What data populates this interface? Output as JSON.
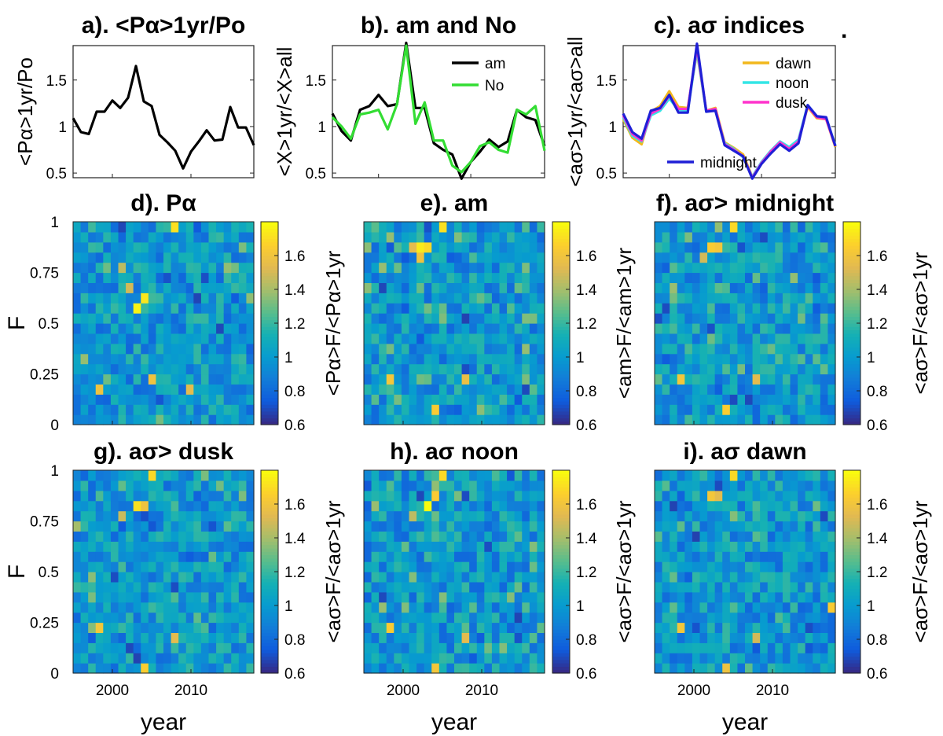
{
  "figure": {
    "trailing_mark": "."
  },
  "chart_data": [
    {
      "id": "a",
      "type": "line",
      "title": "a). <Pα>1yr/Po",
      "ylabel": "<Pα>1yr/Po",
      "xlim": [
        1995,
        2018
      ],
      "ylim": [
        0.45,
        1.87
      ],
      "yticks": [
        "0.5",
        "1",
        "1.5"
      ],
      "ytick_values": [
        0.5,
        1,
        1.5
      ],
      "x": [
        1995,
        1996,
        1997,
        1998,
        1999,
        2000,
        2001,
        2002,
        2003,
        2004,
        2005,
        2006,
        2007,
        2008,
        2009,
        2010,
        2011,
        2012,
        2013,
        2014,
        2015,
        2016,
        2017,
        2018
      ],
      "series": [
        {
          "name": "Pα",
          "color": "#000000",
          "values": [
            1.09,
            0.94,
            0.92,
            1.16,
            1.16,
            1.28,
            1.2,
            1.31,
            1.65,
            1.27,
            1.22,
            0.91,
            0.83,
            0.74,
            0.55,
            0.73,
            0.84,
            0.96,
            0.85,
            0.86,
            1.21,
            0.99,
            0.99,
            0.8
          ]
        }
      ]
    },
    {
      "id": "b",
      "type": "line",
      "title": "b). am and No",
      "ylabel": "<X>1yr/<X>all",
      "xlim": [
        1995,
        2018
      ],
      "ylim": [
        0.45,
        1.87
      ],
      "yticks": [
        "0.5",
        "1",
        "1.5"
      ],
      "ytick_values": [
        0.5,
        1,
        1.5
      ],
      "x": [
        1995,
        1996,
        1997,
        1998,
        1999,
        2000,
        2001,
        2002,
        2003,
        2004,
        2005,
        2006,
        2007,
        2008,
        2009,
        2010,
        2011,
        2012,
        2013,
        2014,
        2015,
        2016,
        2017,
        2018
      ],
      "legend": {
        "position": "top-right",
        "entries": [
          "am",
          "No"
        ]
      },
      "series": [
        {
          "name": "am",
          "color": "#000000",
          "values": [
            1.14,
            0.95,
            0.85,
            1.18,
            1.22,
            1.34,
            1.22,
            1.24,
            1.9,
            1.2,
            1.2,
            0.82,
            0.75,
            0.7,
            0.44,
            0.62,
            0.73,
            0.86,
            0.78,
            0.84,
            1.18,
            1.1,
            1.07,
            0.79
          ]
        },
        {
          "name": "No",
          "color": "#33dd33",
          "values": [
            1.1,
            1.0,
            0.87,
            1.13,
            1.15,
            1.18,
            0.97,
            1.24,
            1.87,
            1.03,
            1.26,
            0.85,
            0.85,
            0.58,
            0.51,
            0.62,
            0.79,
            0.83,
            0.75,
            0.72,
            1.18,
            1.13,
            1.22,
            0.74
          ]
        }
      ]
    },
    {
      "id": "c",
      "type": "line",
      "title": "c). aσ indices",
      "ylabel": "<aσ>1yr/<aσ>all",
      "xlim": [
        1995,
        2018
      ],
      "ylim": [
        0.45,
        1.87
      ],
      "yticks": [
        "0.5",
        "1",
        "1.5"
      ],
      "ytick_values": [
        0.5,
        1,
        1.5
      ],
      "x": [
        1995,
        1996,
        1997,
        1998,
        1999,
        2000,
        2001,
        2002,
        2003,
        2004,
        2005,
        2006,
        2007,
        2008,
        2009,
        2010,
        2011,
        2012,
        2013,
        2014,
        2015,
        2016,
        2017,
        2018
      ],
      "legend": {
        "position": "top-right",
        "entries": [
          "dawn",
          "noon",
          "dusk",
          "midnight"
        ]
      },
      "series": [
        {
          "name": "dawn",
          "color": "#f2b81c",
          "values": [
            1.08,
            0.88,
            0.81,
            1.16,
            1.22,
            1.38,
            1.21,
            1.2,
            1.8,
            1.17,
            1.2,
            0.83,
            0.77,
            0.7,
            0.46,
            0.6,
            0.72,
            0.82,
            0.75,
            0.85,
            1.21,
            1.09,
            1.08,
            0.78
          ]
        },
        {
          "name": "noon",
          "color": "#33e6e6",
          "values": [
            1.1,
            0.9,
            0.84,
            1.12,
            1.17,
            1.3,
            1.18,
            1.17,
            1.82,
            1.16,
            1.18,
            0.82,
            0.76,
            0.67,
            0.46,
            0.62,
            0.74,
            0.84,
            0.78,
            0.86,
            1.23,
            1.11,
            1.09,
            0.8
          ]
        },
        {
          "name": "dusk",
          "color": "#ff33cc",
          "values": [
            1.12,
            0.92,
            0.85,
            1.14,
            1.19,
            1.33,
            1.19,
            1.19,
            1.85,
            1.17,
            1.19,
            0.81,
            0.75,
            0.68,
            0.45,
            0.61,
            0.73,
            0.83,
            0.76,
            0.84,
            1.22,
            1.1,
            1.08,
            0.79
          ]
        },
        {
          "name": "midnight",
          "color": "#1f1fd6",
          "values": [
            1.14,
            0.94,
            0.87,
            1.17,
            1.2,
            1.34,
            1.15,
            1.15,
            1.89,
            1.16,
            1.17,
            0.8,
            0.74,
            0.68,
            0.44,
            0.6,
            0.71,
            0.81,
            0.74,
            0.82,
            1.23,
            1.11,
            1.1,
            0.79
          ]
        }
      ]
    },
    {
      "id": "d",
      "type": "heatmap",
      "title": "d). Pα",
      "ylabel": "F",
      "cbar_label": "",
      "xlim": [
        1995,
        2018
      ],
      "xticks": [
        "2000",
        "2010"
      ],
      "xtick_values": [
        2000,
        2010
      ],
      "yticks": [
        "0",
        "0.25",
        "0.5",
        "0.75",
        "1"
      ],
      "ytick_values": [
        0,
        0.25,
        0.5,
        0.75,
        1
      ],
      "xlabel": "",
      "clim": [
        0.6,
        1.8
      ],
      "cbar_ticks": [
        "0.6",
        "0.8",
        "1",
        "1.2",
        "1.4",
        "1.6"
      ],
      "cbar_tick_values": [
        0.6,
        0.8,
        1,
        1.2,
        1.4,
        1.6
      ],
      "cols": 24,
      "rows": 20,
      "seed": 11,
      "hot_cells": [
        [
          8,
          11,
          1.78
        ],
        [
          9,
          12,
          1.74
        ],
        [
          13,
          19,
          1.72
        ],
        [
          7,
          13,
          1.5
        ],
        [
          10,
          4,
          1.6
        ],
        [
          3,
          3,
          1.6
        ],
        [
          6,
          15,
          1.45
        ],
        [
          15,
          3,
          1.55
        ]
      ]
    },
    {
      "id": "e",
      "type": "heatmap",
      "title": "e). am",
      "ylabel": "<Pα>F/<Pα>1yr",
      "cbar_label": "",
      "xlim": [
        1995,
        2018
      ],
      "xticks": [
        "2000",
        "2010"
      ],
      "xtick_values": [
        2000,
        2010
      ],
      "yticks": [],
      "ytick_values": [],
      "xlabel": "",
      "clim": [
        0.6,
        1.8
      ],
      "cbar_ticks": [
        "0.6",
        "0.8",
        "1",
        "1.2",
        "1.4",
        "1.6"
      ],
      "cbar_tick_values": [
        0.6,
        0.8,
        1,
        1.2,
        1.4,
        1.6
      ],
      "cols": 24,
      "rows": 20,
      "seed": 23,
      "hot_cells": [
        [
          7,
          17,
          1.75
        ],
        [
          8,
          17,
          1.7
        ],
        [
          10,
          19,
          1.72
        ],
        [
          7,
          16,
          1.6
        ],
        [
          3,
          4,
          1.62
        ],
        [
          9,
          1,
          1.65
        ],
        [
          13,
          4,
          1.58
        ],
        [
          6,
          17,
          1.55
        ]
      ]
    },
    {
      "id": "f",
      "type": "heatmap",
      "title": "f). aσ> midnight",
      "ylabel": "<am>F/<am>1yr",
      "cbar_label": "<aσ>F/<aσ>1yr",
      "xlim": [
        1995,
        2018
      ],
      "xticks": [
        "2000",
        "2010"
      ],
      "xtick_values": [
        2000,
        2010
      ],
      "yticks": [],
      "ytick_values": [],
      "xlabel": "",
      "clim": [
        0.6,
        1.8
      ],
      "cbar_ticks": [
        "0.6",
        "0.8",
        "1",
        "1.2",
        "1.4",
        "1.6"
      ],
      "cbar_tick_values": [
        0.6,
        0.8,
        1,
        1.2,
        1.4,
        1.6
      ],
      "cols": 24,
      "rows": 20,
      "seed": 37,
      "hot_cells": [
        [
          7,
          17,
          1.65
        ],
        [
          8,
          17,
          1.62
        ],
        [
          10,
          19,
          1.7
        ],
        [
          3,
          4,
          1.62
        ],
        [
          9,
          1,
          1.66
        ],
        [
          13,
          4,
          1.55
        ],
        [
          6,
          16,
          1.5
        ]
      ]
    },
    {
      "id": "g",
      "type": "heatmap",
      "title": "g). aσ>  dusk",
      "ylabel": "F",
      "cbar_label": "",
      "xlim": [
        1995,
        2018
      ],
      "xticks": [
        "2000",
        "2010"
      ],
      "xtick_values": [
        2000,
        2010
      ],
      "yticks": [
        "0",
        "0.25",
        "0.5",
        "0.75",
        "1"
      ],
      "ytick_values": [
        0,
        0.25,
        0.5,
        0.75,
        1
      ],
      "xlabel": "year",
      "clim": [
        0.6,
        1.8
      ],
      "cbar_ticks": [
        "0.6",
        "0.8",
        "1",
        "1.2",
        "1.4",
        "1.6"
      ],
      "cbar_tick_values": [
        0.6,
        0.8,
        1,
        1.2,
        1.4,
        1.6
      ],
      "cols": 24,
      "rows": 20,
      "seed": 51,
      "hot_cells": [
        [
          8,
          16,
          1.72
        ],
        [
          9,
          16,
          1.6
        ],
        [
          10,
          19,
          1.7
        ],
        [
          3,
          4,
          1.62
        ],
        [
          9,
          0,
          1.66
        ],
        [
          13,
          3,
          1.55
        ],
        [
          6,
          15,
          1.48
        ],
        [
          0,
          14,
          1.4
        ]
      ]
    },
    {
      "id": "h",
      "type": "heatmap",
      "title": "h). aσ noon",
      "ylabel": "<aσ>F/<aσ>1yr",
      "cbar_label": "",
      "xlim": [
        1995,
        2018
      ],
      "xticks": [
        "2000",
        "2010"
      ],
      "xtick_values": [
        2000,
        2010
      ],
      "yticks": [],
      "ytick_values": [],
      "xlabel": "year",
      "clim": [
        0.6,
        1.8
      ],
      "cbar_ticks": [
        "0.6",
        "0.8",
        "1",
        "1.2",
        "1.4",
        "1.6"
      ],
      "cbar_tick_values": [
        0.6,
        0.8,
        1,
        1.2,
        1.4,
        1.6
      ],
      "cols": 24,
      "rows": 20,
      "seed": 67,
      "hot_cells": [
        [
          8,
          16,
          1.8
        ],
        [
          9,
          17,
          1.65
        ],
        [
          10,
          19,
          1.7
        ],
        [
          3,
          4,
          1.65
        ],
        [
          9,
          0,
          1.62
        ],
        [
          13,
          3,
          1.55
        ],
        [
          6,
          15,
          1.45
        ]
      ]
    },
    {
      "id": "i",
      "type": "heatmap",
      "title": "i). aσ dawn",
      "ylabel": "<aσ>F/<aσ>1yr",
      "cbar_label": "<aσ>F/<aσ>1yr",
      "xlim": [
        1995,
        2018
      ],
      "xticks": [
        "2000",
        "2010"
      ],
      "xtick_values": [
        2000,
        2010
      ],
      "yticks": [],
      "ytick_values": [],
      "xlabel": "year",
      "clim": [
        0.6,
        1.8
      ],
      "cbar_ticks": [
        "0.6",
        "0.8",
        "1",
        "1.2",
        "1.4",
        "1.6"
      ],
      "cbar_tick_values": [
        0.6,
        0.8,
        1,
        1.2,
        1.4,
        1.6
      ],
      "cols": 24,
      "rows": 20,
      "seed": 83,
      "hot_cells": [
        [
          7,
          17,
          1.62
        ],
        [
          8,
          17,
          1.55
        ],
        [
          10,
          19,
          1.7
        ],
        [
          3,
          4,
          1.62
        ],
        [
          9,
          0,
          1.6
        ],
        [
          23,
          6,
          1.65
        ],
        [
          13,
          3,
          1.5
        ]
      ]
    }
  ]
}
